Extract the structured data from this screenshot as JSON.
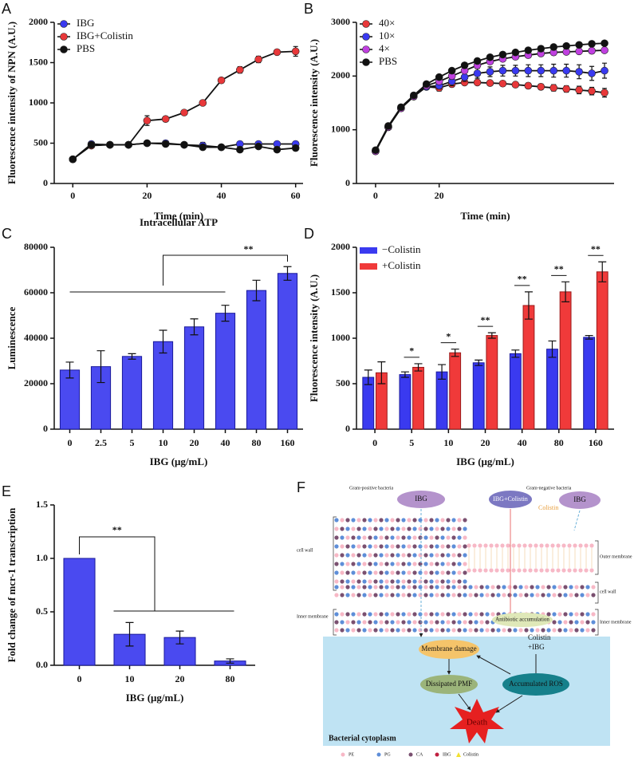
{
  "chart_data": [
    {
      "panel": "A",
      "type": "line",
      "xlabel": "Time (min)",
      "ylabel": "Fluorescence intensity of NPN (A.U.)",
      "x": [
        0,
        5,
        10,
        15,
        20,
        25,
        30,
        35,
        40,
        45,
        50,
        55,
        60
      ],
      "xlim": [
        -5,
        62
      ],
      "xticks": [
        0,
        20,
        40,
        60
      ],
      "ylim": [
        0,
        2000
      ],
      "yticks": [
        0,
        500,
        1000,
        1500,
        2000
      ],
      "series": [
        {
          "name": "IBG",
          "color": "#3a3af0",
          "values": [
            300,
            490,
            480,
            480,
            500,
            500,
            480,
            470,
            450,
            490,
            490,
            490,
            490
          ],
          "errors": [
            0,
            0,
            20,
            0,
            0,
            0,
            0,
            40,
            0,
            0,
            0,
            0,
            0
          ]
        },
        {
          "name": "IBG+Colistin",
          "color": "#e8383a",
          "values": [
            300,
            470,
            480,
            480,
            780,
            800,
            880,
            1000,
            1280,
            1410,
            1540,
            1630,
            1640
          ],
          "errors": [
            0,
            0,
            0,
            0,
            60,
            20,
            20,
            20,
            30,
            40,
            40,
            30,
            60
          ]
        },
        {
          "name": "PBS",
          "color": "#111111",
          "values": [
            300,
            480,
            480,
            480,
            500,
            490,
            480,
            450,
            450,
            420,
            460,
            420,
            440
          ],
          "errors": [
            0,
            0,
            0,
            0,
            0,
            0,
            0,
            0,
            0,
            30,
            0,
            0,
            0
          ]
        }
      ]
    },
    {
      "panel": "B",
      "type": "line",
      "xlabel": "Time (min)",
      "ylabel": "Fluorescence intensity (A.U.)",
      "x": [
        0,
        4,
        8,
        12,
        16,
        20,
        24,
        28,
        32,
        36,
        40,
        44,
        48,
        52,
        56,
        60,
        64,
        68,
        72
      ],
      "xlim": [
        -6,
        75
      ],
      "xticks": [
        0,
        20
      ],
      "ylim": [
        0,
        3000
      ],
      "yticks": [
        0,
        1000,
        2000,
        3000
      ],
      "series": [
        {
          "name": "40×",
          "color": "#e8383a",
          "values": [
            600,
            1050,
            1400,
            1620,
            1800,
            1780,
            1850,
            1880,
            1880,
            1870,
            1860,
            1840,
            1820,
            1800,
            1780,
            1760,
            1740,
            1720,
            1690
          ],
          "errors": [
            0,
            0,
            0,
            0,
            40,
            60,
            50,
            40,
            40,
            40,
            40,
            40,
            50,
            50,
            60,
            60,
            70,
            70,
            80
          ]
        },
        {
          "name": "10×",
          "color": "#3a3af0",
          "values": [
            600,
            1050,
            1400,
            1620,
            1800,
            1820,
            1900,
            1980,
            2050,
            2080,
            2100,
            2100,
            2100,
            2100,
            2100,
            2100,
            2080,
            2050,
            2100
          ],
          "errors": [
            0,
            0,
            0,
            0,
            40,
            60,
            80,
            80,
            90,
            90,
            100,
            100,
            110,
            110,
            120,
            120,
            130,
            130,
            140
          ]
        },
        {
          "name": "4×",
          "color": "#c040e0",
          "values": [
            600,
            1050,
            1400,
            1620,
            1820,
            1900,
            2000,
            2100,
            2200,
            2270,
            2320,
            2360,
            2390,
            2420,
            2440,
            2450,
            2460,
            2470,
            2480
          ],
          "errors": [
            0,
            0,
            0,
            0,
            0,
            0,
            0,
            0,
            0,
            0,
            0,
            0,
            0,
            0,
            0,
            0,
            0,
            0,
            0
          ]
        },
        {
          "name": "PBS",
          "color": "#111111",
          "values": [
            620,
            1070,
            1420,
            1640,
            1850,
            1980,
            2100,
            2200,
            2280,
            2350,
            2400,
            2440,
            2480,
            2510,
            2540,
            2560,
            2580,
            2600,
            2610
          ],
          "errors": [
            0,
            0,
            0,
            0,
            0,
            0,
            0,
            0,
            0,
            0,
            0,
            0,
            0,
            0,
            0,
            0,
            0,
            0,
            0
          ]
        }
      ]
    },
    {
      "panel": "C",
      "type": "bar",
      "title": "Intracellular ATP",
      "xlabel": "IBG (μg/mL)",
      "ylabel": "Luminescence",
      "categories": [
        "0",
        "2.5",
        "5",
        "10",
        "20",
        "40",
        "80",
        "160"
      ],
      "values": [
        26000,
        27500,
        32000,
        38500,
        45000,
        51000,
        61000,
        68500
      ],
      "errors": [
        3500,
        7000,
        1200,
        5000,
        3500,
        3500,
        4500,
        3000
      ],
      "color": "#4a4af0",
      "ylim": [
        0,
        80000
      ],
      "yticks": [
        0,
        20000,
        40000,
        60000,
        80000
      ],
      "sig_label": "**"
    },
    {
      "panel": "D",
      "type": "bar",
      "xlabel": "IBG (μg/mL)",
      "ylabel": "Fluorescence intensity (A.U.)",
      "categories": [
        "0",
        "5",
        "10",
        "20",
        "40",
        "80",
        "160"
      ],
      "series": [
        {
          "name": "−Colistin",
          "color": "#3a3af0",
          "values": [
            570,
            600,
            630,
            730,
            830,
            880,
            1010
          ],
          "errors": [
            80,
            30,
            80,
            30,
            40,
            90,
            20
          ]
        },
        {
          "name": "+Colistin",
          "color": "#f03a3a",
          "values": [
            620,
            680,
            840,
            1030,
            1360,
            1510,
            1730
          ],
          "errors": [
            120,
            40,
            40,
            30,
            150,
            110,
            110
          ]
        }
      ],
      "ylim": [
        0,
        2000
      ],
      "yticks": [
        0,
        500,
        1000,
        1500,
        2000
      ],
      "sig_labels": [
        null,
        "*",
        "*",
        "**",
        "**",
        "**",
        "**"
      ]
    },
    {
      "panel": "E",
      "type": "bar",
      "xlabel": "IBG (μg/mL)",
      "ylabel": "Fold change of mcr-1 transcription",
      "categories": [
        "0",
        "10",
        "20",
        "80"
      ],
      "values": [
        1.0,
        0.29,
        0.26,
        0.04
      ],
      "errors": [
        0,
        0.11,
        0.06,
        0.02
      ],
      "color": "#4a4af0",
      "ylim": [
        0,
        1.5
      ],
      "yticks": [
        {
          "value": 0,
          "label": "0.0"
        },
        {
          "value": 0.5,
          "label": "0.5"
        },
        {
          "value": 1,
          "label": "1.0"
        },
        {
          "value": 1.5,
          "label": "1.5"
        }
      ],
      "sig_label": "**"
    }
  ],
  "diagram": {
    "panel": "F",
    "gram_positive": "Gram-positive bacteria",
    "gram_negative": "Gram-negative bacteria",
    "ibg_left": "IBG",
    "ibg_colistin": "IBG+Colistin",
    "colistin": "Colistin",
    "ibg_right": "IBG",
    "cell_wall_left": "cell wall",
    "outer_membrane": "Outer membrane",
    "cell_wall_right": "cell wall",
    "inner_membrane_left": "Inner membrane",
    "inner_membrane_right": "Inner membrane",
    "antibiotic_accumulation": "Antibiotic accumulation",
    "colistin_ibg": [
      "Colistin",
      "+IBG"
    ],
    "membrane_damage": "Membrane damage",
    "dissipated_pmf": "Dissipated PMF",
    "accumulated_ros": "Accumulated ROS",
    "death": "Death",
    "cytoplasm": "Bacterial cytoplasm",
    "legend": [
      "PE",
      "PG",
      "CA",
      "IBG",
      "Colistin"
    ]
  }
}
